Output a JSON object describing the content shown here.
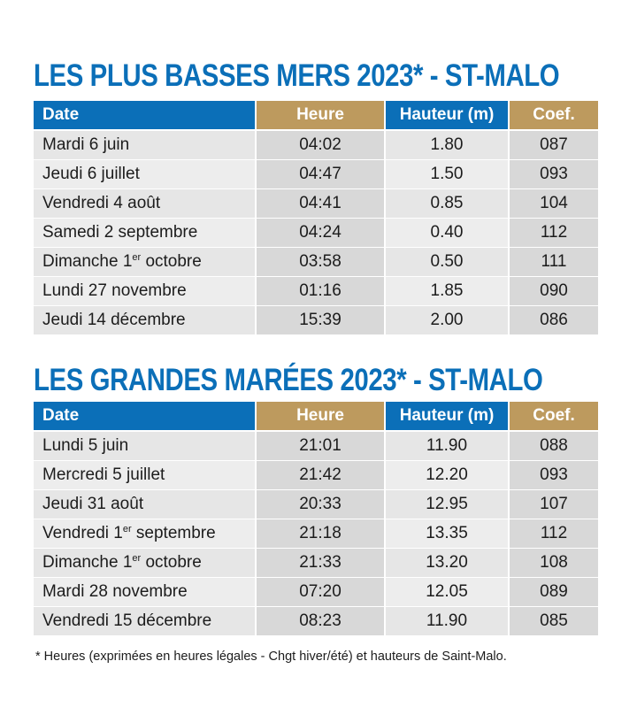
{
  "low_tides": {
    "title": "LES PLUS BASSES MERS 2023* - ST-MALO",
    "headers": {
      "date": "Date",
      "hour": "Heure",
      "height": "Hauteur (m)",
      "coef": "Coef."
    },
    "rows": [
      {
        "date": "Mardi 6 juin",
        "hour": "04:02",
        "height": "1.80",
        "coef": "087"
      },
      {
        "date": "Jeudi 6 juillet",
        "hour": "04:47",
        "height": "1.50",
        "coef": "093"
      },
      {
        "date": "Vendredi 4 août",
        "hour": "04:41",
        "height": "0.85",
        "coef": "104"
      },
      {
        "date": "Samedi 2 septembre",
        "hour": "04:24",
        "height": "0.40",
        "coef": "112"
      },
      {
        "date_pre": "Dimanche 1",
        "date_sup": "er",
        "date_post": " octobre",
        "hour": "03:58",
        "height": "0.50",
        "coef": "111"
      },
      {
        "date": "Lundi 27 novembre",
        "hour": "01:16",
        "height": "1.85",
        "coef": "090"
      },
      {
        "date": "Jeudi 14 décembre",
        "hour": "15:39",
        "height": "2.00",
        "coef": "086"
      }
    ]
  },
  "high_tides": {
    "title": "LES GRANDES MARÉES 2023* - ST-MALO",
    "headers": {
      "date": "Date",
      "hour": "Heure",
      "height": "Hauteur (m)",
      "coef": "Coef."
    },
    "rows": [
      {
        "date": "Lundi 5 juin",
        "hour": "21:01",
        "height": "11.90",
        "coef": "088"
      },
      {
        "date": "Mercredi 5 juillet",
        "hour": "21:42",
        "height": "12.20",
        "coef": "093"
      },
      {
        "date": "Jeudi 31 août",
        "hour": "20:33",
        "height": "12.95",
        "coef": "107"
      },
      {
        "date_pre": "Vendredi 1",
        "date_sup": "er",
        "date_post": " septembre",
        "hour": "21:18",
        "height": "13.35",
        "coef": "112"
      },
      {
        "date_pre": "Dimanche 1",
        "date_sup": "er",
        "date_post": " octobre",
        "hour": "21:33",
        "height": "13.20",
        "coef": "108"
      },
      {
        "date": "Mardi 28 novembre",
        "hour": "07:20",
        "height": "12.05",
        "coef": "089"
      },
      {
        "date": "Vendredi 15 décembre",
        "hour": "08:23",
        "height": "11.90",
        "coef": "085"
      }
    ]
  },
  "footnote": "* Heures (exprimées en heures légales - Chgt hiver/été) et hauteurs de Saint-Malo.",
  "colors": {
    "title": "#0b6fb8",
    "header_blue": "#0b6fb8",
    "header_gold": "#bd9a5e"
  }
}
